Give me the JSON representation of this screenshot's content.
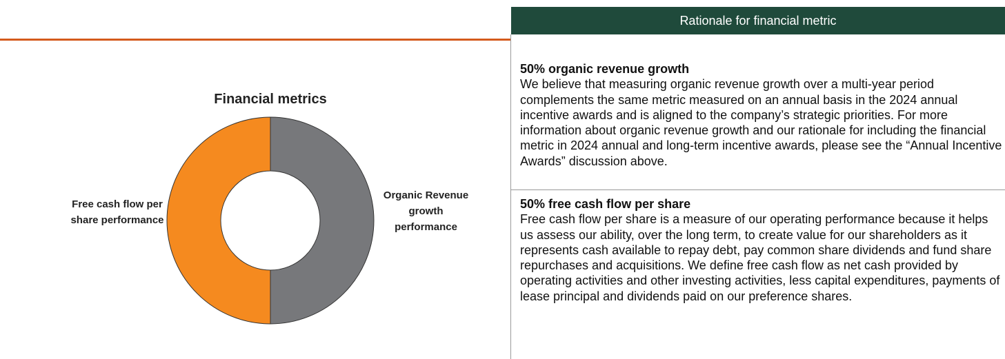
{
  "chart_data": {
    "type": "pie",
    "title": "Financial metrics",
    "categories": [
      "Organic Revenue growth performance",
      "Free cash flow per share performance"
    ],
    "values": [
      50,
      50
    ],
    "colors": [
      "#77787b",
      "#f58a1f"
    ],
    "donut": true
  },
  "table": {
    "header": "Rationale for financial metric",
    "rows": [
      {
        "heading": "50% organic revenue growth",
        "body": "We believe that measuring organic revenue growth over a multi-year period complements the same metric measured on an annual basis in the 2024 annual incentive awards and is aligned to the company’s strategic priorities. For more information about organic revenue growth and our rationale for including the financial metric in 2024 annual and long-term incentive awards, please see the “Annual Incentive Awards” discussion above."
      },
      {
        "heading": "50% free cash flow per share",
        "body": "Free cash flow per share is a measure of our operating performance because it helps us assess our ability, over the long term, to create value for our shareholders as it represents cash available to repay debt, pay common share dividends and fund share repurchases and acquisitions. We define free cash flow as net cash provided by operating activities and other investing activities, less capital expenditures, payments of lease principal and dividends paid on our preference shares."
      }
    ]
  }
}
